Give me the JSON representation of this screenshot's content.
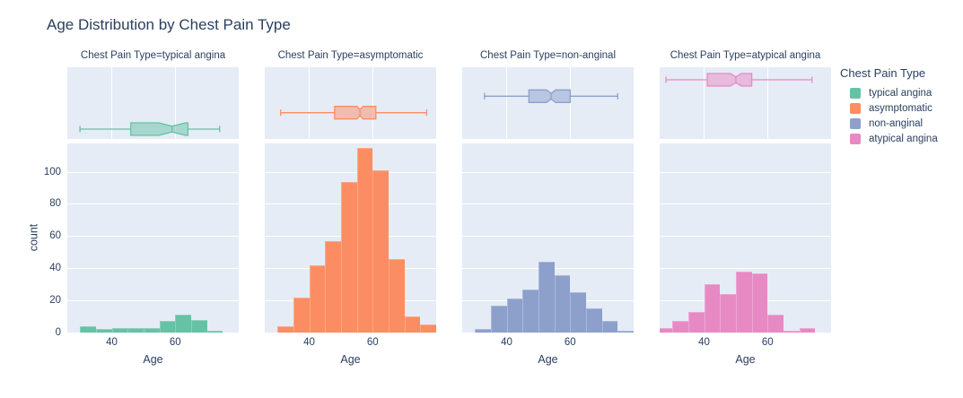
{
  "chart_data": {
    "type": "bar",
    "subtype": "faceted-histogram-with-marginal-boxplot",
    "title": "Age Distribution by Chest Pain Type",
    "xlabel": "Age",
    "ylabel": "count",
    "legend_title": "Chest Pain Type",
    "x_range": [
      26,
      80
    ],
    "y_range": [
      0,
      118
    ],
    "x_ticks": [
      40,
      60
    ],
    "y_ticks": [
      0,
      20,
      40,
      60,
      80,
      100
    ],
    "bin_width": 5,
    "grid": "on",
    "legend_position": "right",
    "facets": [
      {
        "label": "Chest Pain Type=typical angina",
        "category": "typical angina",
        "color": "#66C2A5",
        "bin_start": 30,
        "bins": [
          [
            30,
            35
          ],
          [
            35,
            40
          ],
          [
            40,
            45
          ],
          [
            45,
            50
          ],
          [
            50,
            55
          ],
          [
            55,
            60
          ],
          [
            60,
            65
          ],
          [
            65,
            70
          ],
          [
            70,
            75
          ]
        ],
        "counts": [
          4,
          2,
          3,
          3,
          3,
          7,
          11,
          8,
          1
        ],
        "box": {
          "min": 30,
          "q1": 46,
          "median": 59,
          "q3": 64,
          "max": 74,
          "notch": 4.2
        }
      },
      {
        "label": "Chest Pain Type=asymptomatic",
        "category": "asymptomatic",
        "color": "#FC8D62",
        "bin_start": 30,
        "bins": [
          [
            30,
            35
          ],
          [
            35,
            40
          ],
          [
            40,
            45
          ],
          [
            45,
            50
          ],
          [
            50,
            55
          ],
          [
            55,
            60
          ],
          [
            60,
            65
          ],
          [
            65,
            70
          ],
          [
            70,
            75
          ],
          [
            75,
            80
          ]
        ],
        "counts": [
          4,
          22,
          42,
          57,
          94,
          115,
          101,
          46,
          10,
          5
        ],
        "box": {
          "min": 31,
          "q1": 48,
          "median": 56,
          "q3": 61,
          "max": 77,
          "notch": 0.95
        }
      },
      {
        "label": "Chest Pain Type=non-anginal",
        "category": "non-anginal",
        "color": "#8DA0CB",
        "bin_start": 30,
        "bins": [
          [
            30,
            35
          ],
          [
            35,
            40
          ],
          [
            40,
            45
          ],
          [
            45,
            50
          ],
          [
            50,
            55
          ],
          [
            55,
            60
          ],
          [
            60,
            65
          ],
          [
            65,
            70
          ],
          [
            70,
            75
          ],
          [
            75,
            80
          ]
        ],
        "counts": [
          2,
          17,
          21,
          27,
          44,
          36,
          25,
          15,
          7,
          1
        ],
        "box": {
          "min": 33,
          "q1": 47,
          "median": 54,
          "q3": 60,
          "max": 75,
          "notch": 1.45
        }
      },
      {
        "label": "Chest Pain Type=atypical angina",
        "category": "atypical angina",
        "color": "#E78AC3",
        "bin_start": 25,
        "bins": [
          [
            25,
            30
          ],
          [
            30,
            35
          ],
          [
            35,
            40
          ],
          [
            40,
            45
          ],
          [
            45,
            50
          ],
          [
            50,
            55
          ],
          [
            55,
            60
          ],
          [
            60,
            65
          ],
          [
            65,
            70
          ],
          [
            70,
            75
          ]
        ],
        "counts": [
          3,
          7,
          13,
          30,
          24,
          38,
          37,
          11,
          1,
          3
        ],
        "box": {
          "min": 28,
          "q1": 41,
          "median": 50,
          "q3": 55,
          "max": 74,
          "notch": 1.7
        }
      }
    ]
  }
}
